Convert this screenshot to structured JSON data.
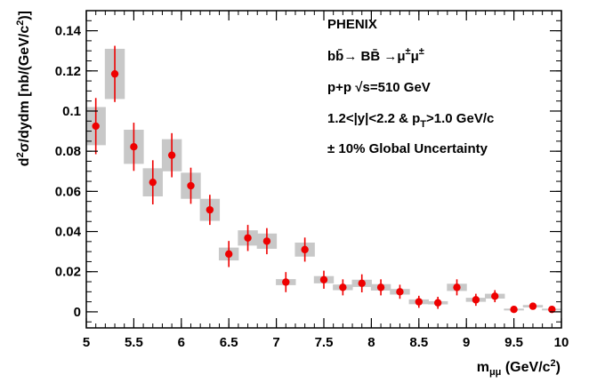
{
  "chart_data": {
    "type": "scatter",
    "title": "",
    "xlabel": "m_{μμ} (GeV/c²)",
    "ylabel": "d²σ/dydm [nb/(GeV/c²)]",
    "xlim": [
      5,
      10
    ],
    "ylim": [
      -0.008,
      0.15
    ],
    "x_ticks": [
      5,
      5.5,
      6,
      6.5,
      7,
      7.5,
      8,
      8.5,
      9,
      9.5,
      10
    ],
    "y_ticks": [
      0,
      0.02,
      0.04,
      0.06,
      0.08,
      0.1,
      0.12,
      0.14
    ],
    "grid": false,
    "legend_placement": "top-right",
    "annotations": {
      "experiment": "PHENIX",
      "process_a": "bb̄→ BB̄ →μ",
      "process_b": "μ",
      "sup1": "±",
      "sup2": "±",
      "collision_a": "p+p ",
      "collision_b": "√s=510 GeV",
      "cuts_a": "1.2<|y|<2.2 & p",
      "cuts_sub": "T",
      "cuts_b": ">1.0 GeV/c",
      "global_unc": "± 10% Global Uncertainty"
    },
    "colors": {
      "points": "#ee0000",
      "systematics": "#c8c8c8",
      "axes": "#000000"
    },
    "series": [
      {
        "marker": "circle",
        "x": [
          5.1,
          5.3,
          5.5,
          5.7,
          5.9,
          6.1,
          6.3,
          6.5,
          6.7,
          6.9,
          7.1,
          7.3,
          7.5,
          7.7,
          7.9,
          8.1,
          8.3,
          8.5,
          8.7,
          8.9,
          9.1,
          9.3,
          9.5,
          9.7,
          9.9
        ],
        "y": [
          0.0925,
          0.1185,
          0.0822,
          0.0645,
          0.078,
          0.0628,
          0.0508,
          0.0288,
          0.0368,
          0.0352,
          0.0148,
          0.031,
          0.016,
          0.0122,
          0.0142,
          0.0122,
          0.01,
          0.005,
          0.0045,
          0.0122,
          0.006,
          0.0078,
          0.0012,
          0.0028,
          0.0012
        ],
        "stat_err": [
          0.014,
          0.014,
          0.012,
          0.011,
          0.011,
          0.009,
          0.0075,
          0.0065,
          0.0065,
          0.0065,
          0.005,
          0.006,
          0.0045,
          0.004,
          0.0045,
          0.004,
          0.0035,
          0.003,
          0.003,
          0.004,
          0.003,
          0.003,
          0.0015,
          0.0015,
          0.0015
        ],
        "sys_err": [
          0.0095,
          0.0125,
          0.0085,
          0.007,
          0.008,
          0.0065,
          0.0055,
          0.0032,
          0.0038,
          0.0038,
          0.0015,
          0.0035,
          0.0018,
          0.0014,
          0.0018,
          0.0016,
          0.0014,
          0.0012,
          0.0008,
          0.0018,
          0.001,
          0.0012,
          0.0004,
          0.0006,
          0.0004
        ]
      }
    ]
  }
}
